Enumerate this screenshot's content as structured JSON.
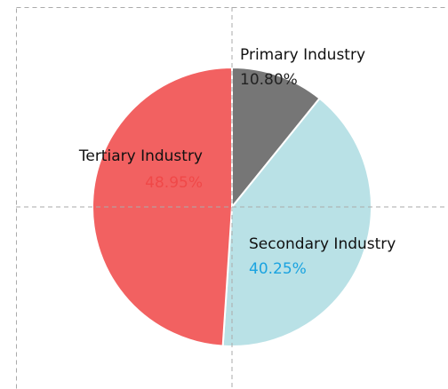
{
  "chart_data": {
    "type": "pie",
    "categories": [
      "Primary Industry",
      "Secondary Industry",
      "Tertiary Industry"
    ],
    "values": [
      10.8,
      40.25,
      48.95
    ],
    "value_labels": [
      "10.80%",
      "40.25%",
      "48.95%"
    ],
    "colors": [
      "#767676",
      "#b9e1e6",
      "#f26161"
    ],
    "value_label_colors": [
      "#222222",
      "#1aa3e0",
      "#f04848"
    ]
  }
}
